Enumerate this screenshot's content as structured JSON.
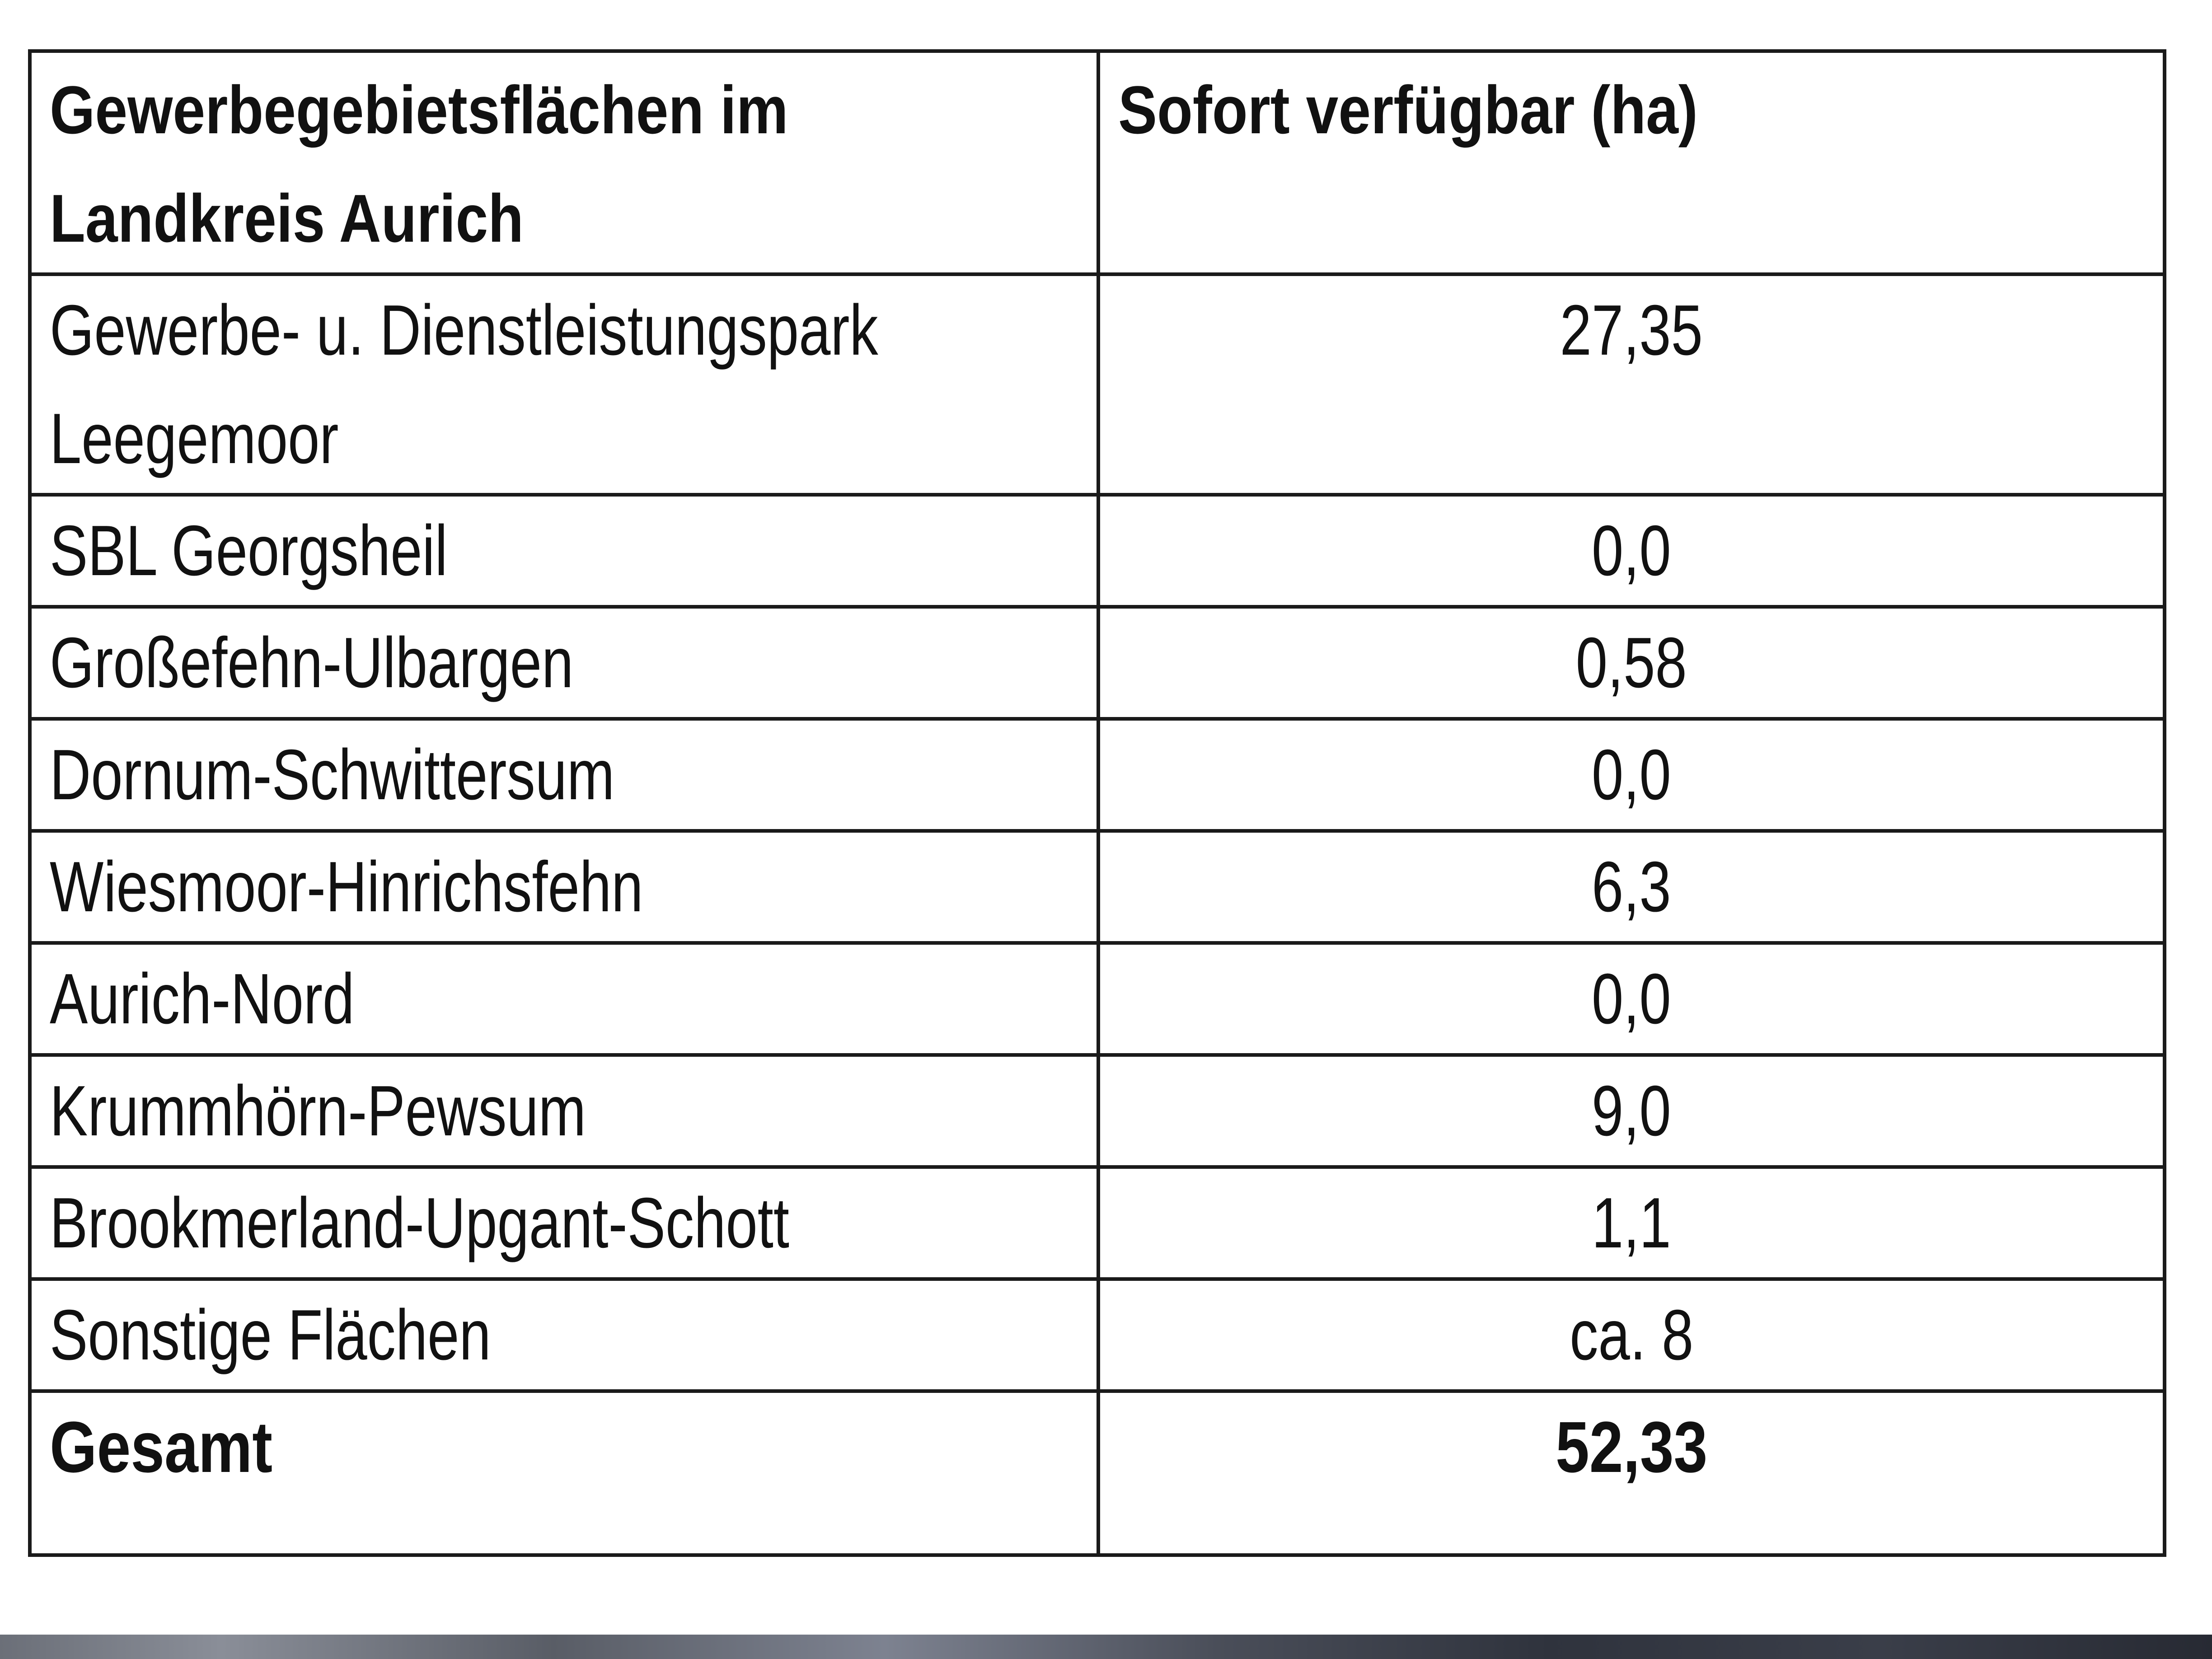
{
  "table": {
    "header": {
      "col1": [
        "Gewerbegebietsflächen im",
        "Landkreis Aurich"
      ],
      "col2": "Sofort verfügbar (ha)"
    },
    "rows": [
      {
        "name_lines": [
          "Gewerbe- u. Dienstleistungspark",
          "Leegemoor"
        ],
        "value": "27,35"
      },
      {
        "name": "SBL Georgsheil",
        "value": "0,0"
      },
      {
        "name": "Großefehn-Ulbargen",
        "value": "0,58"
      },
      {
        "name": "Dornum-Schwittersum",
        "value": "0,0"
      },
      {
        "name": "Wiesmoor-Hinrichsfehn",
        "value": "6,3"
      },
      {
        "name": "Aurich-Nord",
        "value": "0,0"
      },
      {
        "name": "Krummhörn-Pewsum",
        "value": "9,0"
      },
      {
        "name": "Brookmerland-Upgant-Schott",
        "value": "1,1"
      },
      {
        "name": "Sonstige Flächen",
        "value": "ca. 8"
      }
    ],
    "total": {
      "label": "Gesamt",
      "value": "52,33"
    }
  }
}
